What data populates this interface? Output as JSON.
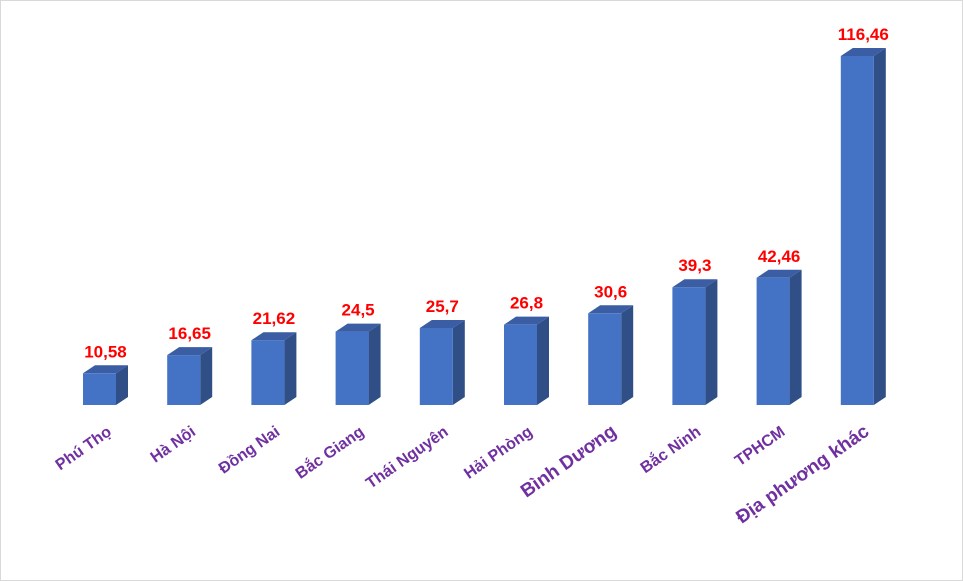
{
  "chart_data": {
    "type": "bar",
    "title": "",
    "xlabel": "",
    "ylabel": "",
    "categories": [
      "Phú Thọ",
      "Hà Nội",
      "Đồng Nai",
      "Bắc Giang",
      "Thái Nguyên",
      "Hải Phòng",
      "Bình Dương",
      "Bắc Ninh",
      "TPHCM",
      "Địa phương khác"
    ],
    "values": [
      10.58,
      16.65,
      21.62,
      24.5,
      25.7,
      26.8,
      30.6,
      39.3,
      42.46,
      116.46
    ],
    "value_labels": [
      "10,58",
      "16,65",
      "21,62",
      "24,5",
      "25,7",
      "26,8",
      "30,6",
      "39,3",
      "42,46",
      "116,46"
    ],
    "ylim": [
      0,
      116.46
    ],
    "grid": false,
    "legend": "none",
    "bar_style": "3d",
    "colors": {
      "bar_front": "#4472C4",
      "bar_side": "#2F4F86",
      "bar_top": "#3A5DA3",
      "value_label": "#FF0000",
      "category_label": "#7030A0"
    }
  }
}
